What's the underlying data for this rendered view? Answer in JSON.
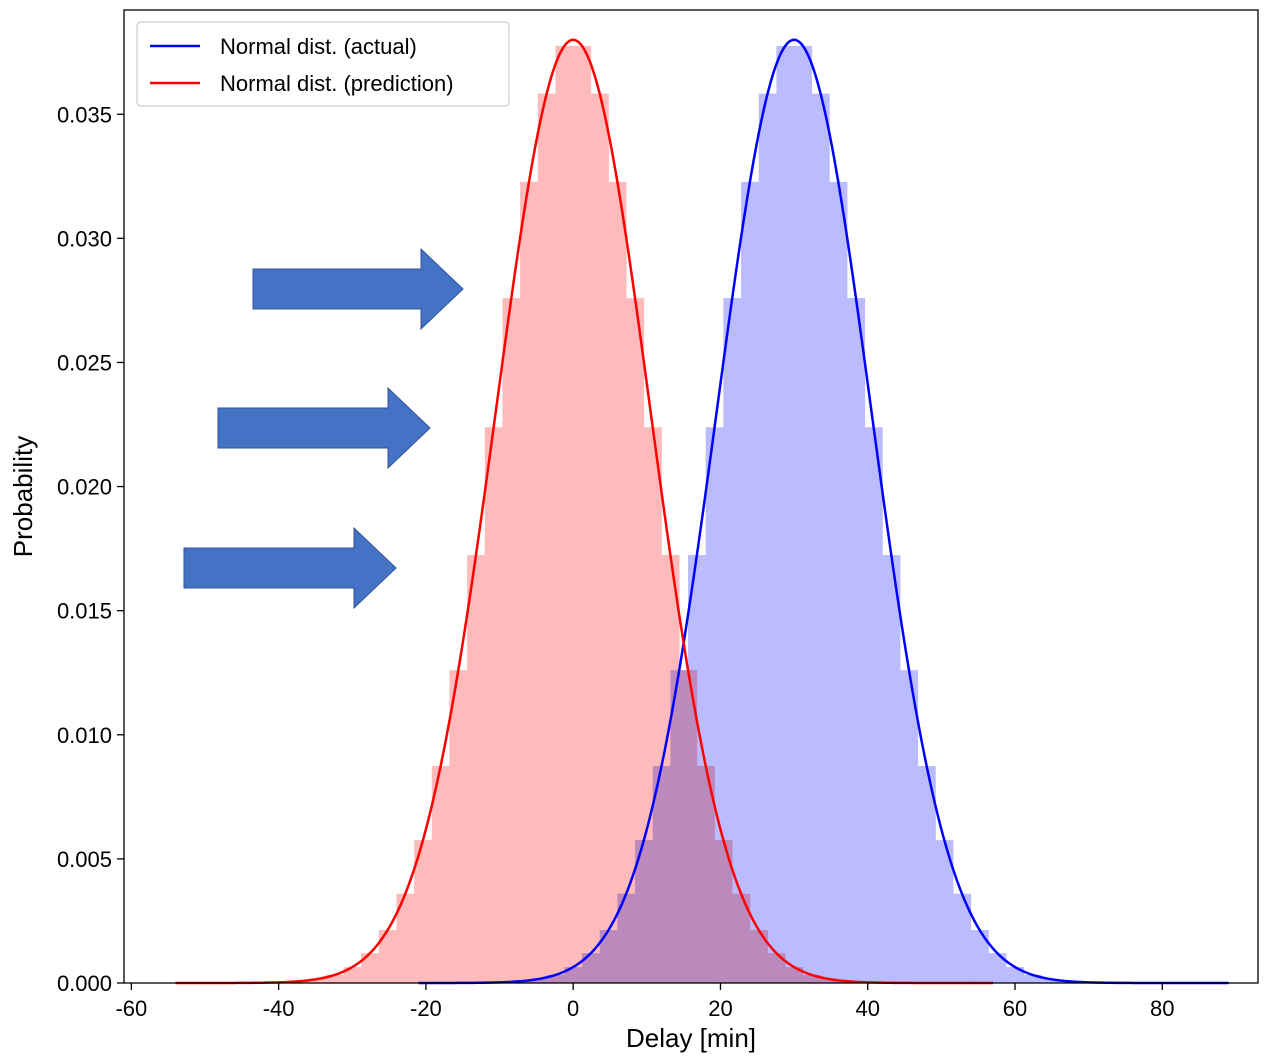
{
  "chart_data": {
    "type": "area",
    "title": "",
    "xlabel": "Delay [min]",
    "ylabel": "Probability",
    "xlim": [
      -61,
      93
    ],
    "ylim": [
      0,
      0.0392
    ],
    "xticks": [
      -60,
      -40,
      -20,
      0,
      20,
      40,
      60,
      80
    ],
    "xtick_labels": [
      "-60",
      "-40",
      "-20",
      "0",
      "20",
      "40",
      "60",
      "80"
    ],
    "yticks": [
      0.0,
      0.005,
      0.01,
      0.015,
      0.02,
      0.025,
      0.03,
      0.035
    ],
    "ytick_labels": [
      "0.000",
      "0.005",
      "0.010",
      "0.015",
      "0.020",
      "0.025",
      "0.030",
      "0.035"
    ],
    "grid": false,
    "legend_position": "top-left",
    "series": [
      {
        "name": "Normal dist. (actual)",
        "kind": "normal-pdf-with-histogram",
        "mean": 30,
        "std": 10.5,
        "peak": 0.038,
        "x_range": [
          -21,
          89
        ],
        "bin_width": 2.4,
        "line_color": "#0000ff",
        "fill_color": "#bbbbff"
      },
      {
        "name": "Normal dist. (prediction)",
        "kind": "normal-pdf-with-histogram",
        "mean": 0,
        "std": 10.5,
        "peak": 0.038,
        "x_range": [
          -54,
          57
        ],
        "bin_width": 2.4,
        "line_color": "#ff0000",
        "fill_color": "#ffbbbb"
      }
    ],
    "overlap_color": "#cc8fc2",
    "annotations": [
      {
        "type": "arrow",
        "direction": "right",
        "color": "#4472c4"
      },
      {
        "type": "arrow",
        "direction": "right",
        "color": "#4472c4"
      },
      {
        "type": "arrow",
        "direction": "right",
        "color": "#4472c4"
      }
    ]
  }
}
